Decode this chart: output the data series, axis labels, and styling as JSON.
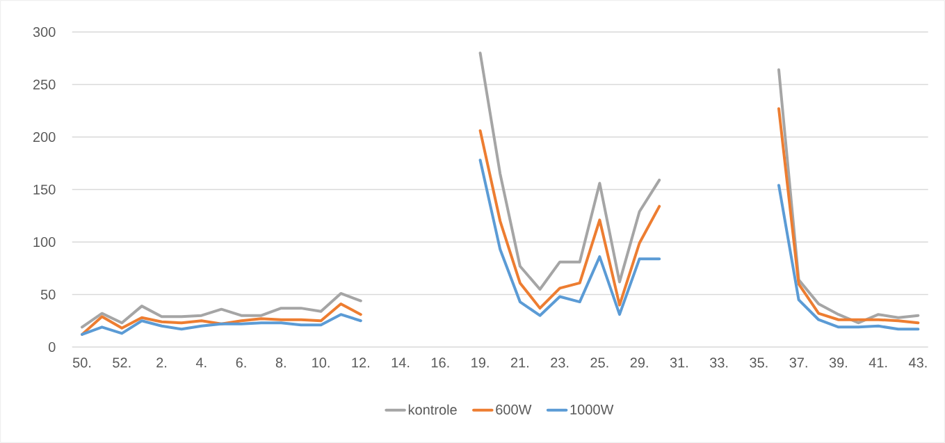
{
  "chart_data": {
    "type": "line",
    "categories": [
      "50.",
      null,
      "52.",
      null,
      "2.",
      null,
      "4.",
      null,
      "6.",
      null,
      "8.",
      null,
      "10.",
      null,
      "12.",
      null,
      "14.",
      null,
      "16.",
      null,
      "19.",
      null,
      "21.",
      null,
      "23.",
      null,
      "25.",
      null,
      "29.",
      null,
      "31.",
      null,
      "33.",
      null,
      "35.",
      null,
      "37.",
      null,
      "39.",
      null,
      "41.",
      null,
      "43."
    ],
    "series": [
      {
        "name": "kontrole",
        "color": "#a5a5a5",
        "values": [
          19,
          32,
          23,
          39,
          29,
          29,
          30,
          36,
          30,
          30,
          37,
          37,
          34,
          51,
          44,
          null,
          null,
          null,
          null,
          null,
          280,
          165,
          77,
          55,
          81,
          81,
          156,
          62,
          129,
          159,
          null,
          null,
          null,
          null,
          null,
          264,
          64,
          41,
          31,
          23,
          31,
          28,
          30
        ]
      },
      {
        "name": "600W",
        "color": "#ed7d31",
        "values": [
          12,
          29,
          18,
          28,
          24,
          23,
          25,
          22,
          25,
          27,
          26,
          26,
          25,
          41,
          31,
          null,
          null,
          null,
          null,
          null,
          206,
          120,
          61,
          37,
          56,
          61,
          121,
          40,
          99,
          134,
          null,
          null,
          null,
          null,
          null,
          227,
          60,
          32,
          26,
          26,
          26,
          25,
          23
        ]
      },
      {
        "name": "1000W",
        "color": "#5b9bd5",
        "values": [
          12,
          19,
          13,
          25,
          20,
          17,
          20,
          22,
          22,
          23,
          23,
          21,
          21,
          31,
          25,
          null,
          null,
          null,
          null,
          null,
          178,
          93,
          43,
          30,
          48,
          43,
          86,
          31,
          84,
          84,
          null,
          null,
          null,
          null,
          null,
          154,
          45,
          26,
          19,
          19,
          20,
          17,
          17
        ]
      }
    ],
    "ylim": [
      0,
      300
    ],
    "yticks": [
      0,
      50,
      100,
      150,
      200,
      250,
      300
    ],
    "grid": "y",
    "legend": "bottom",
    "marker": "none",
    "line_style": "solid"
  }
}
